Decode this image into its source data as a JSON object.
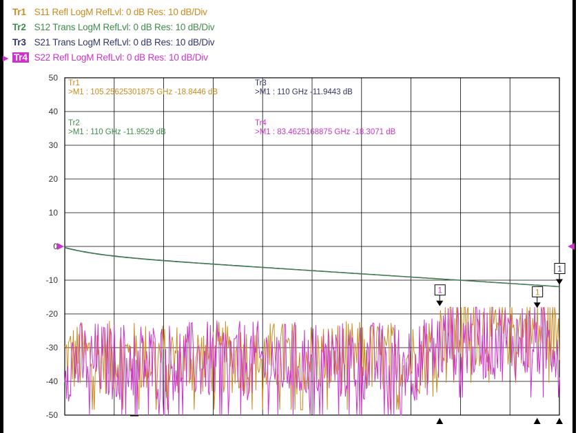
{
  "traces": [
    {
      "name": "Tr1",
      "desc": "S11 Refl LogM RefLvl: 0  dB Res: 10  dB/Div",
      "color": "#cc8a1e"
    },
    {
      "name": "Tr2",
      "desc": "S12 Trans LogM RefLvl: 0  dB Res: 10  dB/Div",
      "color": "#3f8c4a"
    },
    {
      "name": "Tr3",
      "desc": "S21 Trans LogM RefLvl: 0  dB Res: 10  dB/Div",
      "color": "#33336b"
    },
    {
      "name": "Tr4",
      "desc": "S22 Refl LogM RefLvl: 0  dB Res: 10  dB/Div",
      "color": "#cc33cc"
    }
  ],
  "active_trace": "Tr4",
  "marker_readouts": [
    {
      "trace": "Tr1",
      "text": ">M1  :  105.25625301875 GHz  -18.8446  dB"
    },
    {
      "trace": "Tr3",
      "text": ">M1  :  110 GHz  -11.9443  dB"
    },
    {
      "trace": "Tr2",
      "text": ">M1  :  110 GHz  -11.9529  dB"
    },
    {
      "trace": "Tr4",
      "text": ">M1  :  83.4625168875 GHz  -18.3071  dB"
    }
  ],
  "marker_label": "1",
  "chart_data": {
    "type": "line",
    "ylim": [
      -50,
      50
    ],
    "yticks": [
      "50",
      "40",
      "30",
      "20",
      "10",
      "0",
      "-10",
      "-20",
      "-30",
      "-40",
      "-50"
    ],
    "x_divisions": 10,
    "grid": true,
    "reference_level": 0,
    "series": [
      {
        "trace": "Tr3",
        "kind": "smooth",
        "start": -0.3,
        "end": -11.9
      },
      {
        "trace": "Tr2",
        "kind": "smooth",
        "start": -0.4,
        "end": -11.95
      },
      {
        "trace": "Tr1",
        "kind": "noise",
        "mean": -33,
        "spread": 11,
        "tail_mean": -25
      },
      {
        "trace": "Tr4",
        "kind": "noise",
        "mean": -34,
        "spread": 12,
        "tail_mean": -28
      }
    ],
    "markers": [
      {
        "trace": "Tr3",
        "x_frac": 1.0,
        "y": -11.94
      },
      {
        "trace": "Tr4",
        "x_frac": 0.758,
        "y": -18.31
      },
      {
        "trace": "Tr1",
        "x_frac": 0.955,
        "y": -18.84
      }
    ],
    "bottom_markers_x_frac": [
      0.758,
      0.955,
      1.0
    ]
  }
}
